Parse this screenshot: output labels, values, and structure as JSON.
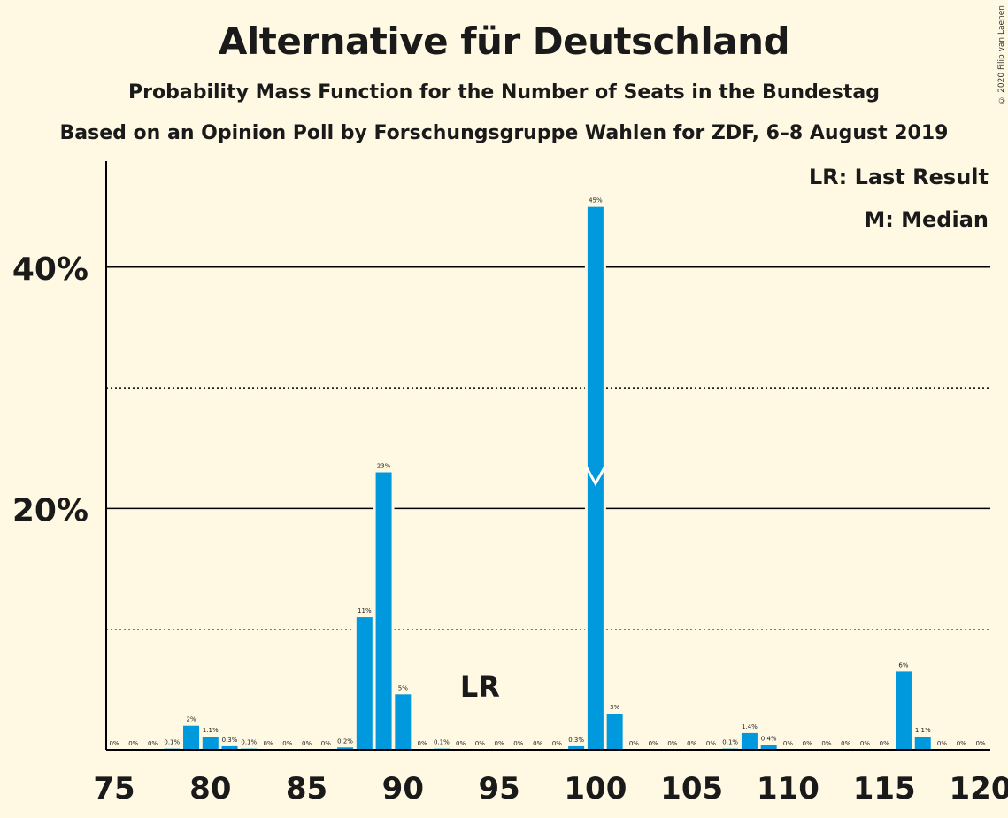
{
  "title": "Alternative für Deutschland",
  "subtitle1": "Probability Mass Function for the Number of Seats in the Bundestag",
  "subtitle2": "Based on an Opinion Poll by Forschungsgruppe Wahlen for ZDF, 6–8 August 2019",
  "copyright": "© 2020 Filip van Laenen",
  "legend": {
    "lr": "LR: Last Result",
    "median": "M: Median"
  },
  "colors": {
    "bar": "#0099DD",
    "background": "#FFF9E3"
  },
  "chart_data": {
    "type": "bar",
    "x": [
      75,
      76,
      77,
      78,
      79,
      80,
      81,
      82,
      83,
      84,
      85,
      86,
      87,
      88,
      89,
      90,
      91,
      92,
      93,
      94,
      95,
      96,
      97,
      98,
      99,
      100,
      101,
      102,
      103,
      104,
      105,
      106,
      107,
      108,
      109,
      110,
      111,
      112,
      113,
      114,
      115,
      116,
      117,
      118,
      119,
      120
    ],
    "values": [
      0,
      0,
      0,
      0.1,
      2,
      1.1,
      0.3,
      0.1,
      0,
      0,
      0,
      0,
      0.2,
      11,
      23,
      4.6,
      0,
      0.1,
      0,
      0,
      0,
      0,
      0,
      0,
      0.3,
      45,
      3,
      0,
      0,
      0,
      0,
      0,
      0.1,
      1.4,
      0.4,
      0,
      0,
      0,
      0,
      0,
      0,
      6.5,
      1.1,
      0,
      0,
      0
    ],
    "labels": [
      "0%",
      "0%",
      "0%",
      "0.1%",
      "2%",
      "1.1%",
      "0.3%",
      "0.1%",
      "0%",
      "0%",
      "0%",
      "0%",
      "0.2%",
      "11%",
      "23%",
      "5%",
      "0%",
      "0.1%",
      "0%",
      "0%",
      "0%",
      "0%",
      "0%",
      "0%",
      "0.3%",
      "45%",
      "3%",
      "0%",
      "0%",
      "0%",
      "0%",
      "0%",
      "0.1%",
      "1.4%",
      "0.4%",
      "0%",
      "0%",
      "0%",
      "0%",
      "0%",
      "0%",
      "6%",
      "1.1%",
      "0%",
      "0%",
      "0%"
    ],
    "xticks": [
      75,
      80,
      85,
      90,
      95,
      100,
      105,
      110,
      115,
      120
    ],
    "yticks": [
      {
        "value": 20,
        "label": "20%"
      },
      {
        "value": 40,
        "label": "40%"
      }
    ],
    "minor_grid": [
      10,
      30
    ],
    "ylim": [
      0,
      49
    ],
    "last_result": {
      "seat": 94,
      "label": "LR"
    },
    "median": 100
  }
}
